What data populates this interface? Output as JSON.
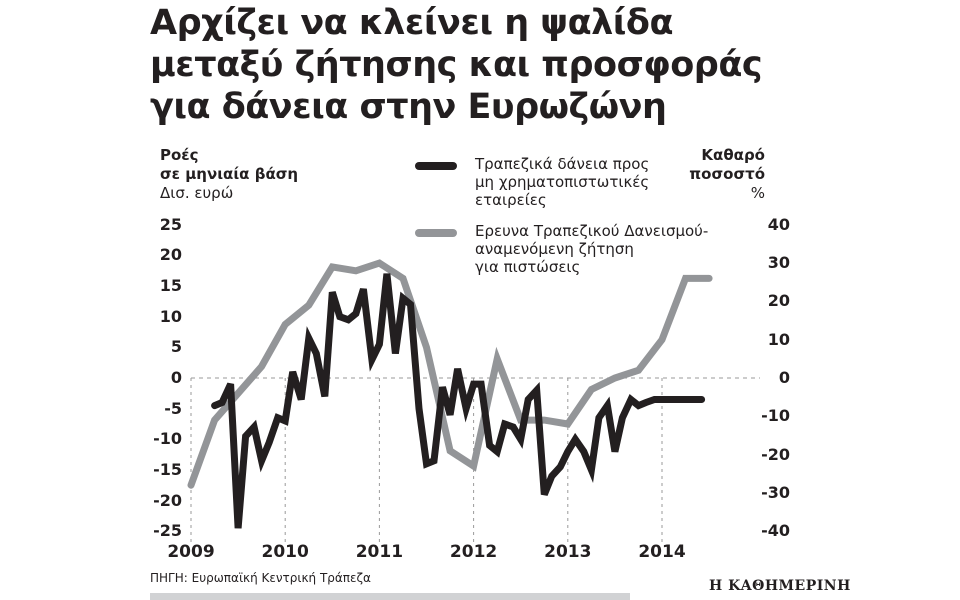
{
  "title": {
    "lines": [
      "Αρχίζει να κλείνει η ψαλίδα",
      "μεταξύ ζήτησης και προσφοράς",
      "για δάνεια στην Ευρωζώνη"
    ]
  },
  "left_axis": {
    "label_bold_1": "Ροές",
    "label_bold_2": "σε μηνιαία βάση",
    "label_unit": "Δισ. ευρώ",
    "ticks": [
      "25",
      "20",
      "15",
      "10",
      "5",
      "0",
      "-5",
      "-10",
      "-15",
      "-20",
      "-25"
    ]
  },
  "right_axis": {
    "label_1": "Καθαρό",
    "label_2": "ποσοστό",
    "label_unit": "%",
    "ticks": [
      "40",
      "30",
      "20",
      "10",
      "0",
      "-10",
      "-20",
      "-30",
      "-40"
    ]
  },
  "x_axis": {
    "ticks": [
      "2009",
      "2010",
      "2011",
      "2012",
      "2013",
      "2014"
    ]
  },
  "legend": [
    {
      "label": "Τραπεζικά δάνεια προς\nμη χρηματοπιστωτικές\nεταιρείες",
      "color": "#231f20"
    },
    {
      "label": "Ερευνα Τραπεζικού Δανεισμού-\nαναμενόμενη ζήτηση\nγια πιστώσεις",
      "color": "#939598"
    }
  ],
  "source": "ΠΗΓΗ: Ευρωπαϊκή Κεντρική Τράπεζα",
  "brand": "Η ΚΑΘΗΜΕΡΙΝΗ",
  "colors": {
    "loans": "#231f20",
    "survey": "#939598",
    "grid": "#9a9a9a",
    "footbar": "#d1d2d4"
  },
  "chart_data": {
    "type": "line",
    "title": "Αρχίζει να κλείνει η ψαλίδα μεταξύ ζήτησης και προσφοράς για δάνεια στην Ευρωζώνη",
    "xlabel": "",
    "ylabel": "Ροές σε μηνιαία βάση, Δισ. ευρώ",
    "ylabel_right": "Καθαρό ποσοστό %",
    "ylim": [
      -25,
      25
    ],
    "ylim_right": [
      -40,
      40
    ],
    "xlim": [
      2009.0,
      2014.75
    ],
    "grid": "dashed at y=0 and vertical at year ticks",
    "legend_position": "top-center",
    "series": [
      {
        "name": "Τραπεζικά δάνεια προς μη χρηματοπιστωτικές εταιρείες",
        "axis": "left",
        "x": [
          2009.25,
          2009.33,
          2009.42,
          2009.5,
          2009.58,
          2009.67,
          2009.75,
          2009.83,
          2009.92,
          2010.0,
          2010.08,
          2010.17,
          2010.25,
          2010.33,
          2010.42,
          2010.5,
          2010.58,
          2010.67,
          2010.75,
          2010.83,
          2010.92,
          2011.0,
          2011.08,
          2011.17,
          2011.25,
          2011.33,
          2011.42,
          2011.5,
          2011.58,
          2011.67,
          2011.75,
          2011.83,
          2011.92,
          2012.0,
          2012.08,
          2012.17,
          2012.25,
          2012.33,
          2012.42,
          2012.5,
          2012.58,
          2012.67,
          2012.75,
          2012.83,
          2012.92,
          2013.0,
          2013.08,
          2013.17,
          2013.25,
          2013.33,
          2013.42,
          2013.5,
          2013.58,
          2013.67,
          2013.75,
          2013.83,
          2013.92,
          2014.0,
          2014.08,
          2014.17,
          2014.25,
          2014.33,
          2014.42
        ],
        "values": [
          -4.5,
          -4,
          -1,
          -24.5,
          -9.5,
          -8,
          -13.5,
          -10.5,
          -6.5,
          -7,
          1,
          -3.5,
          6.5,
          4,
          -3,
          14,
          10,
          9.5,
          10.5,
          14.5,
          3,
          5.5,
          17,
          4,
          13,
          12,
          -5,
          -14,
          -13.5,
          -1.5,
          -6,
          1.5,
          -5,
          -1,
          -1,
          -11,
          -12,
          -7.5,
          -8,
          -10,
          -3.5,
          -2,
          -19,
          -16,
          -14.5,
          -12,
          -10,
          -12,
          -15,
          -6.5,
          -4.5,
          -12,
          -6.5,
          -3.5,
          -4.5,
          -4,
          -3.5,
          -3.5,
          -3.5,
          -3.5,
          -3.5,
          -3.5,
          -3.5
        ]
      },
      {
        "name": "Ερευνα Τραπεζικού Δανεισμού-αναμενόμενη ζήτηση για πιστώσεις",
        "axis": "right",
        "x": [
          2009.0,
          2009.25,
          2009.5,
          2009.75,
          2010.0,
          2010.25,
          2010.5,
          2010.75,
          2011.0,
          2011.25,
          2011.5,
          2011.75,
          2012.0,
          2012.25,
          2012.5,
          2012.75,
          2013.0,
          2013.25,
          2013.5,
          2013.75,
          2014.0,
          2014.25,
          2014.5
        ],
        "values": [
          -28,
          -11,
          -4,
          3,
          14,
          19,
          29,
          28,
          30,
          26,
          8,
          -19,
          -23,
          5,
          -11,
          -11,
          -12,
          -3,
          0,
          2,
          10,
          26,
          26
        ]
      }
    ]
  }
}
